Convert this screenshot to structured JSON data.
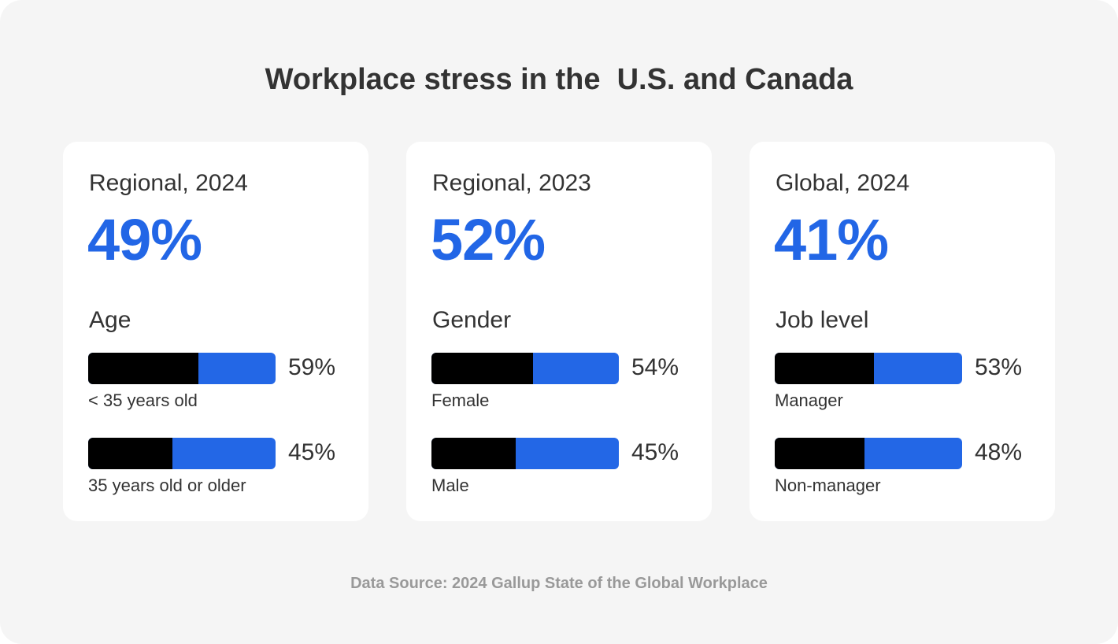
{
  "title": "Workplace stress in the  U.S. and Canada",
  "source": "Data Source: 2024 Gallup State of the Global Workplace",
  "colors": {
    "accent": "#2367e6",
    "fill": "#000000",
    "background": "#f5f5f5"
  },
  "chart_data": {
    "type": "bar",
    "title": "Workplace stress in the  U.S. and Canada",
    "cards": [
      {
        "label": "Regional, 2024",
        "headline": "49%",
        "category": "Age",
        "bars": [
          {
            "name": "< 35 years old",
            "value": 59,
            "display": "59%"
          },
          {
            "name": "35 years old or older",
            "value": 45,
            "display": "45%"
          }
        ]
      },
      {
        "label": "Regional, 2023",
        "headline": "52%",
        "category": "Gender",
        "bars": [
          {
            "name": "Female",
            "value": 54,
            "display": "54%"
          },
          {
            "name": "Male",
            "value": 45,
            "display": "45%"
          }
        ]
      },
      {
        "label": "Global, 2024",
        "headline": "41%",
        "category": "Job level",
        "bars": [
          {
            "name": "Manager",
            "value": 53,
            "display": "53%"
          },
          {
            "name": "Non-manager",
            "value": 48,
            "display": "48%"
          }
        ]
      }
    ]
  }
}
